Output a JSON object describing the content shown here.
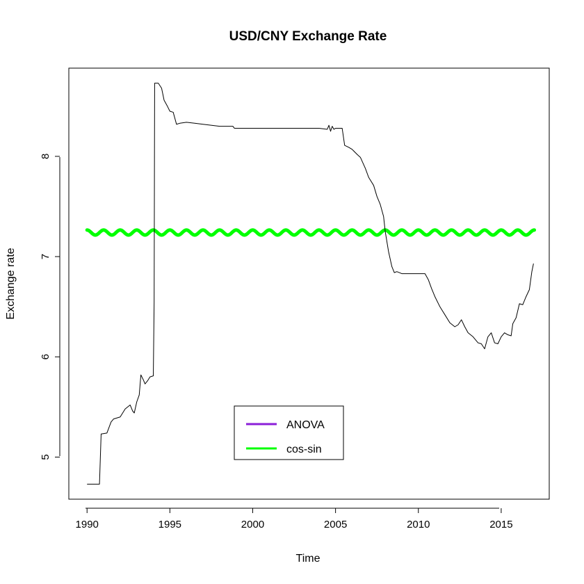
{
  "chart_data": {
    "type": "line",
    "title": "USD/CNY Exchange Rate",
    "xlabel": "Time",
    "ylabel": "Exchange rate",
    "xlim": [
      1988.9,
      2017.9
    ],
    "ylim": [
      4.58,
      8.88
    ],
    "x_ticks": [
      1990,
      1995,
      2000,
      2005,
      2010,
      2015
    ],
    "x_tick_labels": [
      "1990",
      "1995",
      "2000",
      "2005",
      "2010",
      "2015"
    ],
    "y_ticks": [
      5,
      6,
      7,
      8
    ],
    "y_tick_labels": [
      "5",
      "6",
      "7",
      "8"
    ],
    "grid": false,
    "legend_position": "bottom-center",
    "series": [
      {
        "key": "exchange-rate",
        "color": "#000000",
        "line_width": 1,
        "points": [
          [
            1990.0,
            4.73
          ],
          [
            1990.75,
            4.73
          ],
          [
            1990.85,
            5.23
          ],
          [
            1991.2,
            5.24
          ],
          [
            1991.45,
            5.35
          ],
          [
            1991.6,
            5.38
          ],
          [
            1992.0,
            5.4
          ],
          [
            1992.3,
            5.48
          ],
          [
            1992.6,
            5.52
          ],
          [
            1992.75,
            5.46
          ],
          [
            1992.85,
            5.44
          ],
          [
            1993.0,
            5.55
          ],
          [
            1993.15,
            5.62
          ],
          [
            1993.25,
            5.82
          ],
          [
            1993.4,
            5.77
          ],
          [
            1993.5,
            5.73
          ],
          [
            1993.65,
            5.76
          ],
          [
            1993.8,
            5.8
          ],
          [
            1994.0,
            5.81
          ],
          [
            1994.05,
            6.55
          ],
          [
            1994.08,
            8.73
          ],
          [
            1994.3,
            8.73
          ],
          [
            1994.5,
            8.68
          ],
          [
            1994.65,
            8.56
          ],
          [
            1994.85,
            8.5
          ],
          [
            1995.0,
            8.45
          ],
          [
            1995.2,
            8.44
          ],
          [
            1995.4,
            8.32
          ],
          [
            1995.6,
            8.33
          ],
          [
            1996.0,
            8.34
          ],
          [
            1996.5,
            8.33
          ],
          [
            1997.0,
            8.32
          ],
          [
            1998.0,
            8.3
          ],
          [
            1998.8,
            8.3
          ],
          [
            1998.9,
            8.28
          ],
          [
            2000.0,
            8.28
          ],
          [
            2002.0,
            8.28
          ],
          [
            2004.0,
            8.28
          ],
          [
            2004.5,
            8.27
          ],
          [
            2004.6,
            8.31
          ],
          [
            2004.7,
            8.25
          ],
          [
            2004.8,
            8.3
          ],
          [
            2004.9,
            8.27
          ],
          [
            2005.0,
            8.28
          ],
          [
            2005.4,
            8.28
          ],
          [
            2005.55,
            8.11
          ],
          [
            2005.8,
            8.09
          ],
          [
            2006.0,
            8.07
          ],
          [
            2006.3,
            8.02
          ],
          [
            2006.5,
            7.99
          ],
          [
            2006.8,
            7.88
          ],
          [
            2007.0,
            7.79
          ],
          [
            2007.3,
            7.71
          ],
          [
            2007.5,
            7.6
          ],
          [
            2007.7,
            7.52
          ],
          [
            2007.9,
            7.4
          ],
          [
            2008.0,
            7.25
          ],
          [
            2008.2,
            7.05
          ],
          [
            2008.4,
            6.9
          ],
          [
            2008.55,
            6.84
          ],
          [
            2008.7,
            6.85
          ],
          [
            2009.0,
            6.83
          ],
          [
            2009.5,
            6.83
          ],
          [
            2010.0,
            6.83
          ],
          [
            2010.4,
            6.83
          ],
          [
            2010.6,
            6.77
          ],
          [
            2010.8,
            6.68
          ],
          [
            2011.0,
            6.6
          ],
          [
            2011.3,
            6.5
          ],
          [
            2011.6,
            6.42
          ],
          [
            2011.9,
            6.34
          ],
          [
            2012.2,
            6.3
          ],
          [
            2012.4,
            6.32
          ],
          [
            2012.6,
            6.37
          ],
          [
            2012.8,
            6.3
          ],
          [
            2013.0,
            6.24
          ],
          [
            2013.3,
            6.2
          ],
          [
            2013.6,
            6.14
          ],
          [
            2013.8,
            6.13
          ],
          [
            2014.0,
            6.08
          ],
          [
            2014.2,
            6.2
          ],
          [
            2014.4,
            6.24
          ],
          [
            2014.6,
            6.14
          ],
          [
            2014.8,
            6.13
          ],
          [
            2015.0,
            6.2
          ],
          [
            2015.2,
            6.24
          ],
          [
            2015.4,
            6.22
          ],
          [
            2015.6,
            6.21
          ],
          [
            2015.7,
            6.33
          ],
          [
            2015.9,
            6.39
          ],
          [
            2016.1,
            6.53
          ],
          [
            2016.3,
            6.52
          ],
          [
            2016.5,
            6.6
          ],
          [
            2016.7,
            6.67
          ],
          [
            2016.85,
            6.85
          ],
          [
            2016.95,
            6.93
          ]
        ]
      },
      {
        "key": "anova",
        "legend": "ANOVA",
        "color": "#8b1fd8",
        "line_width": 3,
        "points": []
      },
      {
        "key": "cos-sin",
        "legend": "cos-sin",
        "color": "#00ff00",
        "line_width": 5,
        "model": {
          "type": "harmonic",
          "mean": 7.24,
          "amplitude": 0.025,
          "period_years": 1.0,
          "x_start": 1990.0,
          "x_end": 2017.0
        }
      }
    ],
    "legend": [
      {
        "label": "ANOVA",
        "color": "#8b1fd8"
      },
      {
        "label": "cos-sin",
        "color": "#00ff00"
      }
    ]
  }
}
